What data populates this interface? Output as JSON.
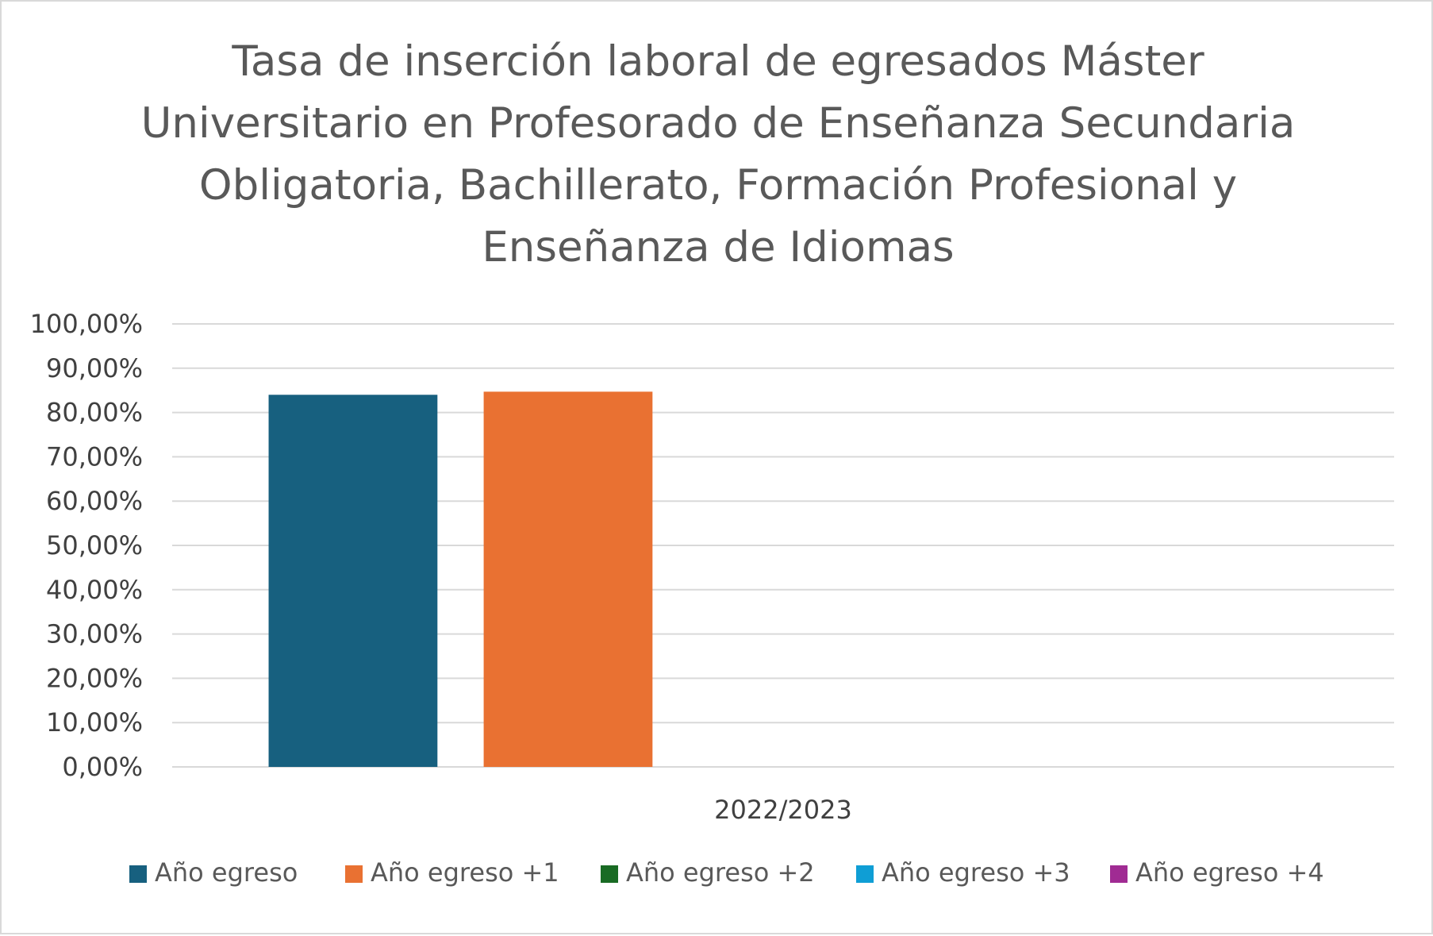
{
  "chart_data": {
    "type": "bar",
    "title_lines": [
      "Tasa de inserción laboral de egresados Máster",
      "Universitario en Profesorado de Enseñanza Secundaria",
      "Obligatoria, Bachillerato, Formación Profesional y",
      "Enseñanza de Idiomas"
    ],
    "categories": [
      "2022/2023"
    ],
    "series": [
      {
        "name": "Año egreso",
        "color": "#17607f",
        "values": [
          84.0
        ]
      },
      {
        "name": "Año egreso +1",
        "color": "#e97132",
        "values": [
          84.7
        ]
      },
      {
        "name": "Año egreso +2",
        "color": "#196b24",
        "values": [
          null
        ]
      },
      {
        "name": "Año egreso +3",
        "color": "#0f9ed5",
        "values": [
          null
        ]
      },
      {
        "name": "Año egreso +4",
        "color": "#a02b93",
        "values": [
          null
        ]
      }
    ],
    "ylim": [
      0,
      100
    ],
    "y_ticks": [
      "0,00%",
      "10,00%",
      "20,00%",
      "30,00%",
      "40,00%",
      "50,00%",
      "60,00%",
      "70,00%",
      "80,00%",
      "90,00%",
      "100,00%"
    ],
    "grid": true,
    "legend_position": "bottom"
  }
}
